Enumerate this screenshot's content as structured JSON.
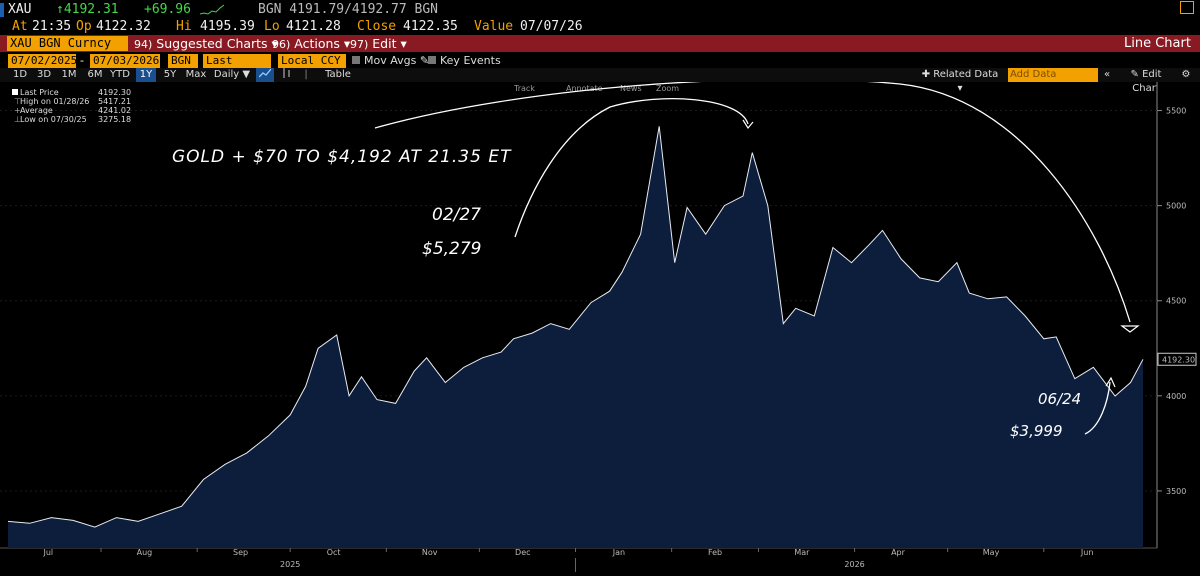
{
  "header": {
    "symbol": "XAU",
    "last": "↑4192.31",
    "change": "+69.96",
    "bid_ask": "BGN 4191.79/4192.77 BGN",
    "at_label": "At",
    "at_time": "21:35",
    "op_label": "Op",
    "op": "4122.32",
    "hi_label": "Hi",
    "hi": "4195.39",
    "lo_label": "Lo",
    "lo": "4121.28",
    "close_label": "Close",
    "close": "4122.35",
    "value_label": "Value",
    "value_date": "07/07/26"
  },
  "menubar": {
    "security": "XAU BGN Curncy",
    "items": [
      {
        "num": "94)",
        "label": "Suggested Charts"
      },
      {
        "num": "96)",
        "label": "Actions"
      },
      {
        "num": "97)",
        "label": "Edit"
      }
    ],
    "title": "Line Chart"
  },
  "daterow": {
    "start": "07/02/2025",
    "end": "07/03/2026",
    "source": "BGN",
    "field": "Last Price",
    "currency": "Local CCY",
    "mov_avgs": "Mov Avgs",
    "key_events": "Key Events"
  },
  "periods": [
    "1D",
    "3D",
    "1M",
    "6M",
    "YTD",
    "1Y",
    "5Y",
    "Max",
    "Daily"
  ],
  "selected_period": "1Y",
  "table_label": "Table",
  "right_controls": {
    "related": "Related Data",
    "add_data": "Add Data",
    "edit_chart": "Edit Chart"
  },
  "toolbar": [
    "Track",
    "Annotate",
    "News",
    "Zoom"
  ],
  "legend": [
    {
      "label": "Last Price",
      "value": "4192.30"
    },
    {
      "label": "High on 01/28/26",
      "value": "5417.21"
    },
    {
      "label": "Average",
      "value": "4241.02"
    },
    {
      "label": "Low on 07/30/25",
      "value": "3275.18"
    }
  ],
  "annotations": {
    "headline": "GOLD + $70 TO $4,192 AT 21.35 ET",
    "peak_date": "02/27",
    "peak_value": "$5,279",
    "low_date": "06/24",
    "low_value": "$3,999"
  },
  "chart_data": {
    "type": "area",
    "series": [
      {
        "name": "Last Price",
        "x": [
          "2025-07-02",
          "2025-07-09",
          "2025-07-16",
          "2025-07-23",
          "2025-07-30",
          "2025-08-06",
          "2025-08-13",
          "2025-08-20",
          "2025-08-27",
          "2025-09-03",
          "2025-09-10",
          "2025-09-17",
          "2025-09-24",
          "2025-10-01",
          "2025-10-06",
          "2025-10-10",
          "2025-10-16",
          "2025-10-20",
          "2025-10-24",
          "2025-10-29",
          "2025-11-04",
          "2025-11-10",
          "2025-11-14",
          "2025-11-20",
          "2025-11-26",
          "2025-12-02",
          "2025-12-08",
          "2025-12-12",
          "2025-12-18",
          "2025-12-24",
          "2025-12-30",
          "2026-01-06",
          "2026-01-12",
          "2026-01-16",
          "2026-01-22",
          "2026-01-28",
          "2026-02-02",
          "2026-02-06",
          "2026-02-12",
          "2026-02-18",
          "2026-02-24",
          "2026-02-27",
          "2026-03-04",
          "2026-03-09",
          "2026-03-13",
          "2026-03-19",
          "2026-03-25",
          "2026-03-31",
          "2026-04-06",
          "2026-04-10",
          "2026-04-16",
          "2026-04-22",
          "2026-04-28",
          "2026-05-04",
          "2026-05-08",
          "2026-05-14",
          "2026-05-20",
          "2026-05-26",
          "2026-06-01",
          "2026-06-05",
          "2026-06-11",
          "2026-06-17",
          "2026-06-24",
          "2026-06-29",
          "2026-07-03"
        ],
        "values": [
          3340,
          3330,
          3360,
          3345,
          3310,
          3360,
          3340,
          3380,
          3420,
          3560,
          3640,
          3700,
          3790,
          3900,
          4050,
          4250,
          4320,
          4000,
          4100,
          3980,
          3960,
          4130,
          4200,
          4070,
          4150,
          4200,
          4230,
          4300,
          4330,
          4380,
          4350,
          4490,
          4550,
          4650,
          4850,
          5417,
          4700,
          4990,
          4850,
          5000,
          5050,
          5279,
          5000,
          4380,
          4460,
          4420,
          4780,
          4700,
          4800,
          4870,
          4720,
          4620,
          4600,
          4700,
          4540,
          4510,
          4520,
          4420,
          4300,
          4310,
          4090,
          4150,
          3999,
          4070,
          4192
        ]
      }
    ],
    "yticks": [
      3500,
      4000,
      4500,
      5000,
      5500
    ],
    "ylim": [
      3200,
      5650
    ],
    "last_label": "4192.30",
    "months": [
      "Jul",
      "Aug",
      "Sep",
      "Oct",
      "Nov",
      "Dec",
      "Jan",
      "Feb",
      "Mar",
      "Apr",
      "May",
      "Jun"
    ],
    "years": [
      "2025",
      "2026"
    ]
  }
}
